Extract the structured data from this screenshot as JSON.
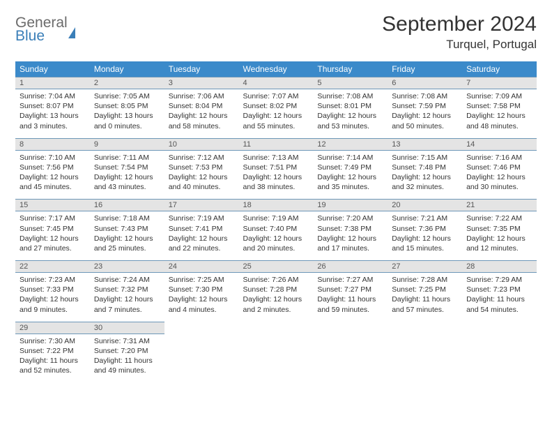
{
  "logo": {
    "line1": "General",
    "line2": "Blue"
  },
  "title": "September 2024",
  "location": "Turquel, Portugal",
  "colors": {
    "header_bg": "#3b8aca",
    "header_text": "#ffffff",
    "daynum_bg": "#e4e4e4",
    "daynum_border": "#6d97b8",
    "body_text": "#333333",
    "logo_gray": "#6b6b6b",
    "logo_blue": "#3b7fb8"
  },
  "typography": {
    "title_fontsize": 30,
    "location_fontsize": 17,
    "dayheader_fontsize": 12,
    "daynum_fontsize": 11,
    "detail_fontsize": 10.5
  },
  "day_headers": [
    "Sunday",
    "Monday",
    "Tuesday",
    "Wednesday",
    "Thursday",
    "Friday",
    "Saturday"
  ],
  "weeks": [
    [
      {
        "num": "1",
        "sunrise": "7:04 AM",
        "sunset": "8:07 PM",
        "daylight": "13 hours and 3 minutes."
      },
      {
        "num": "2",
        "sunrise": "7:05 AM",
        "sunset": "8:05 PM",
        "daylight": "13 hours and 0 minutes."
      },
      {
        "num": "3",
        "sunrise": "7:06 AM",
        "sunset": "8:04 PM",
        "daylight": "12 hours and 58 minutes."
      },
      {
        "num": "4",
        "sunrise": "7:07 AM",
        "sunset": "8:02 PM",
        "daylight": "12 hours and 55 minutes."
      },
      {
        "num": "5",
        "sunrise": "7:08 AM",
        "sunset": "8:01 PM",
        "daylight": "12 hours and 53 minutes."
      },
      {
        "num": "6",
        "sunrise": "7:08 AM",
        "sunset": "7:59 PM",
        "daylight": "12 hours and 50 minutes."
      },
      {
        "num": "7",
        "sunrise": "7:09 AM",
        "sunset": "7:58 PM",
        "daylight": "12 hours and 48 minutes."
      }
    ],
    [
      {
        "num": "8",
        "sunrise": "7:10 AM",
        "sunset": "7:56 PM",
        "daylight": "12 hours and 45 minutes."
      },
      {
        "num": "9",
        "sunrise": "7:11 AM",
        "sunset": "7:54 PM",
        "daylight": "12 hours and 43 minutes."
      },
      {
        "num": "10",
        "sunrise": "7:12 AM",
        "sunset": "7:53 PM",
        "daylight": "12 hours and 40 minutes."
      },
      {
        "num": "11",
        "sunrise": "7:13 AM",
        "sunset": "7:51 PM",
        "daylight": "12 hours and 38 minutes."
      },
      {
        "num": "12",
        "sunrise": "7:14 AM",
        "sunset": "7:49 PM",
        "daylight": "12 hours and 35 minutes."
      },
      {
        "num": "13",
        "sunrise": "7:15 AM",
        "sunset": "7:48 PM",
        "daylight": "12 hours and 32 minutes."
      },
      {
        "num": "14",
        "sunrise": "7:16 AM",
        "sunset": "7:46 PM",
        "daylight": "12 hours and 30 minutes."
      }
    ],
    [
      {
        "num": "15",
        "sunrise": "7:17 AM",
        "sunset": "7:45 PM",
        "daylight": "12 hours and 27 minutes."
      },
      {
        "num": "16",
        "sunrise": "7:18 AM",
        "sunset": "7:43 PM",
        "daylight": "12 hours and 25 minutes."
      },
      {
        "num": "17",
        "sunrise": "7:19 AM",
        "sunset": "7:41 PM",
        "daylight": "12 hours and 22 minutes."
      },
      {
        "num": "18",
        "sunrise": "7:19 AM",
        "sunset": "7:40 PM",
        "daylight": "12 hours and 20 minutes."
      },
      {
        "num": "19",
        "sunrise": "7:20 AM",
        "sunset": "7:38 PM",
        "daylight": "12 hours and 17 minutes."
      },
      {
        "num": "20",
        "sunrise": "7:21 AM",
        "sunset": "7:36 PM",
        "daylight": "12 hours and 15 minutes."
      },
      {
        "num": "21",
        "sunrise": "7:22 AM",
        "sunset": "7:35 PM",
        "daylight": "12 hours and 12 minutes."
      }
    ],
    [
      {
        "num": "22",
        "sunrise": "7:23 AM",
        "sunset": "7:33 PM",
        "daylight": "12 hours and 9 minutes."
      },
      {
        "num": "23",
        "sunrise": "7:24 AM",
        "sunset": "7:32 PM",
        "daylight": "12 hours and 7 minutes."
      },
      {
        "num": "24",
        "sunrise": "7:25 AM",
        "sunset": "7:30 PM",
        "daylight": "12 hours and 4 minutes."
      },
      {
        "num": "25",
        "sunrise": "7:26 AM",
        "sunset": "7:28 PM",
        "daylight": "12 hours and 2 minutes."
      },
      {
        "num": "26",
        "sunrise": "7:27 AM",
        "sunset": "7:27 PM",
        "daylight": "11 hours and 59 minutes."
      },
      {
        "num": "27",
        "sunrise": "7:28 AM",
        "sunset": "7:25 PM",
        "daylight": "11 hours and 57 minutes."
      },
      {
        "num": "28",
        "sunrise": "7:29 AM",
        "sunset": "7:23 PM",
        "daylight": "11 hours and 54 minutes."
      }
    ],
    [
      {
        "num": "29",
        "sunrise": "7:30 AM",
        "sunset": "7:22 PM",
        "daylight": "11 hours and 52 minutes."
      },
      {
        "num": "30",
        "sunrise": "7:31 AM",
        "sunset": "7:20 PM",
        "daylight": "11 hours and 49 minutes."
      },
      null,
      null,
      null,
      null,
      null
    ]
  ],
  "labels": {
    "sunrise": "Sunrise: ",
    "sunset": "Sunset: ",
    "daylight": "Daylight: "
  }
}
